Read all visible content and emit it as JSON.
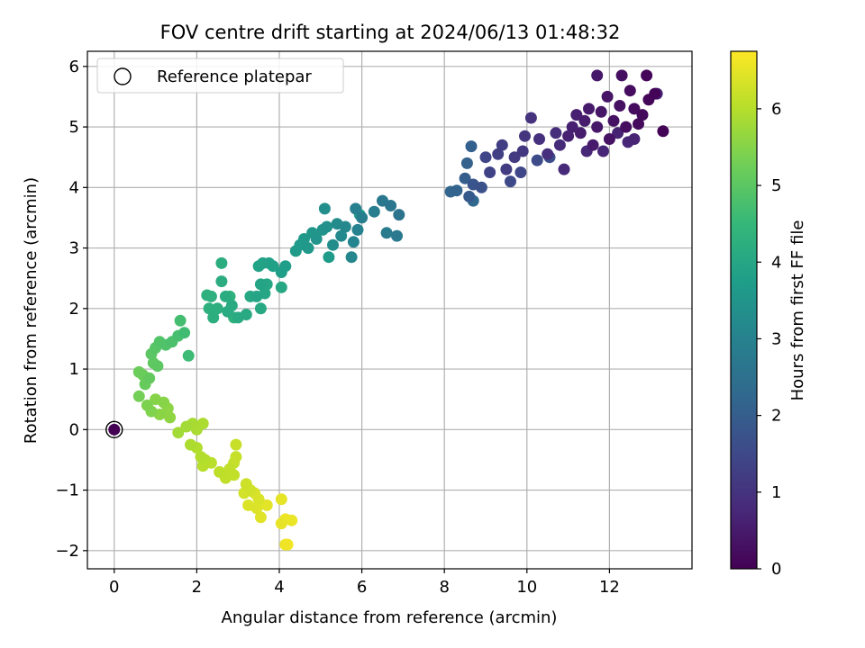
{
  "figure": {
    "title": "FOV centre drift starting at 2024/06/13 01:48:32"
  },
  "colors": {
    "viridis": [
      "#440154",
      "#482878",
      "#3e4989",
      "#31688e",
      "#26828e",
      "#1f9e89",
      "#35b779",
      "#6ece58",
      "#b5de2b",
      "#fde725"
    ],
    "grid": "#b0b0b0",
    "axes": "#000000"
  },
  "chart_data": {
    "type": "scatter",
    "title": "FOV centre drift starting at 2024/06/13 01:48:32",
    "xlabel": "Angular distance from reference (arcmin)",
    "ylabel": "Rotation from reference (arcmin)",
    "xlim": [
      -0.65,
      14
    ],
    "ylim": [
      -2.3,
      6.25
    ],
    "xticks": [
      0,
      2,
      4,
      6,
      8,
      10,
      12
    ],
    "yticks": [
      -2,
      -1,
      0,
      1,
      2,
      3,
      4,
      5,
      6
    ],
    "grid": true,
    "colorbar": {
      "label": "Hours from first FF file",
      "range": [
        0,
        6.75
      ],
      "ticks": [
        0,
        1,
        2,
        3,
        4,
        5,
        6
      ],
      "colormap": "viridis"
    },
    "legend": {
      "position": "top-left",
      "entries": [
        {
          "label": "Reference platepar",
          "marker": "open-circle"
        }
      ]
    },
    "reference_point": {
      "x": 0,
      "y": 0,
      "t": 0
    },
    "series": [
      {
        "points": [
          {
            "x": 13.3,
            "y": 4.93,
            "t": 0.05
          },
          {
            "x": 13.1,
            "y": 5.55,
            "t": 0.08
          },
          {
            "x": 12.9,
            "y": 5.85,
            "t": 0.1
          },
          {
            "x": 12.95,
            "y": 5.45,
            "t": 0.12
          },
          {
            "x": 12.8,
            "y": 5.2,
            "t": 0.15
          },
          {
            "x": 12.7,
            "y": 5.05,
            "t": 0.18
          },
          {
            "x": 12.6,
            "y": 5.3,
            "t": 0.2
          },
          {
            "x": 12.5,
            "y": 5.6,
            "t": 0.22
          },
          {
            "x": 12.4,
            "y": 5.0,
            "t": 0.25
          },
          {
            "x": 12.3,
            "y": 5.85,
            "t": 0.28
          },
          {
            "x": 12.25,
            "y": 5.35,
            "t": 0.3
          },
          {
            "x": 12.1,
            "y": 5.1,
            "t": 0.32
          },
          {
            "x": 12.0,
            "y": 4.8,
            "t": 0.35
          },
          {
            "x": 11.95,
            "y": 5.5,
            "t": 0.38
          },
          {
            "x": 11.8,
            "y": 5.25,
            "t": 0.4
          },
          {
            "x": 11.7,
            "y": 5.0,
            "t": 0.42
          },
          {
            "x": 11.7,
            "y": 5.85,
            "t": 0.45
          },
          {
            "x": 11.6,
            "y": 4.7,
            "t": 0.48
          },
          {
            "x": 11.5,
            "y": 5.3,
            "t": 0.5
          },
          {
            "x": 11.4,
            "y": 5.1,
            "t": 0.52
          },
          {
            "x": 11.3,
            "y": 4.9,
            "t": 0.55
          },
          {
            "x": 11.2,
            "y": 5.2,
            "t": 0.58
          },
          {
            "x": 11.1,
            "y": 5.0,
            "t": 0.6
          },
          {
            "x": 11.0,
            "y": 4.85,
            "t": 0.62
          },
          {
            "x": 12.2,
            "y": 4.9,
            "t": 0.65
          },
          {
            "x": 12.6,
            "y": 4.8,
            "t": 0.67
          },
          {
            "x": 13.15,
            "y": 5.55,
            "t": 0.7
          },
          {
            "x": 11.85,
            "y": 4.6,
            "t": 0.72
          },
          {
            "x": 12.45,
            "y": 4.75,
            "t": 0.74
          },
          {
            "x": 11.45,
            "y": 4.6,
            "t": 0.76
          },
          {
            "x": 10.9,
            "y": 4.3,
            "t": 0.8
          },
          {
            "x": 10.8,
            "y": 4.7,
            "t": 0.84
          },
          {
            "x": 10.7,
            "y": 4.9,
            "t": 0.88
          },
          {
            "x": 10.5,
            "y": 4.55,
            "t": 0.92
          },
          {
            "x": 10.3,
            "y": 4.8,
            "t": 0.96
          },
          {
            "x": 10.1,
            "y": 5.15,
            "t": 1.0
          },
          {
            "x": 9.95,
            "y": 4.85,
            "t": 1.05
          },
          {
            "x": 9.9,
            "y": 4.6,
            "t": 1.1
          },
          {
            "x": 9.7,
            "y": 4.5,
            "t": 1.15
          },
          {
            "x": 9.5,
            "y": 4.3,
            "t": 1.2
          },
          {
            "x": 9.4,
            "y": 4.7,
            "t": 1.25
          },
          {
            "x": 9.3,
            "y": 4.55,
            "t": 1.3
          },
          {
            "x": 9.1,
            "y": 4.25,
            "t": 1.35
          },
          {
            "x": 9.0,
            "y": 4.5,
            "t": 1.4
          },
          {
            "x": 9.85,
            "y": 4.25,
            "t": 1.45
          },
          {
            "x": 9.6,
            "y": 4.1,
            "t": 1.5
          },
          {
            "x": 10.25,
            "y": 4.45,
            "t": 1.55
          },
          {
            "x": 10.55,
            "y": 4.5,
            "t": 1.6
          },
          {
            "x": 8.9,
            "y": 4.0,
            "t": 1.7
          },
          {
            "x": 8.7,
            "y": 4.05,
            "t": 1.8
          },
          {
            "x": 8.6,
            "y": 3.85,
            "t": 1.9
          },
          {
            "x": 8.5,
            "y": 4.15,
            "t": 2.0
          },
          {
            "x": 8.65,
            "y": 4.68,
            "t": 2.05
          },
          {
            "x": 8.55,
            "y": 4.4,
            "t": 2.1
          },
          {
            "x": 8.3,
            "y": 3.95,
            "t": 2.15
          },
          {
            "x": 8.15,
            "y": 3.93,
            "t": 2.2
          },
          {
            "x": 8.7,
            "y": 3.78,
            "t": 2.25
          },
          {
            "x": 6.9,
            "y": 3.55,
            "t": 2.6
          },
          {
            "x": 6.7,
            "y": 3.7,
            "t": 2.65
          },
          {
            "x": 6.5,
            "y": 3.78,
            "t": 2.7
          },
          {
            "x": 6.85,
            "y": 3.2,
            "t": 2.75
          },
          {
            "x": 6.6,
            "y": 3.25,
            "t": 2.8
          },
          {
            "x": 6.3,
            "y": 3.6,
            "t": 2.85
          },
          {
            "x": 6.0,
            "y": 3.5,
            "t": 2.9
          },
          {
            "x": 5.85,
            "y": 3.65,
            "t": 2.95
          },
          {
            "x": 5.9,
            "y": 3.3,
            "t": 3.0
          },
          {
            "x": 5.8,
            "y": 3.1,
            "t": 3.05
          },
          {
            "x": 5.75,
            "y": 2.85,
            "t": 3.1
          },
          {
            "x": 5.6,
            "y": 3.35,
            "t": 3.15
          },
          {
            "x": 5.5,
            "y": 3.2,
            "t": 3.2
          },
          {
            "x": 5.4,
            "y": 3.4,
            "t": 3.25
          },
          {
            "x": 5.3,
            "y": 3.05,
            "t": 3.3
          },
          {
            "x": 5.1,
            "y": 3.65,
            "t": 3.35
          },
          {
            "x": 5.15,
            "y": 3.35,
            "t": 3.4
          },
          {
            "x": 5.05,
            "y": 3.3,
            "t": 3.45
          },
          {
            "x": 4.9,
            "y": 3.15,
            "t": 3.5
          },
          {
            "x": 4.8,
            "y": 3.25,
            "t": 3.55
          },
          {
            "x": 4.7,
            "y": 3.0,
            "t": 3.6
          },
          {
            "x": 4.6,
            "y": 3.15,
            "t": 3.62
          },
          {
            "x": 4.5,
            "y": 3.05,
            "t": 3.65
          },
          {
            "x": 4.4,
            "y": 2.95,
            "t": 3.68
          },
          {
            "x": 5.2,
            "y": 2.85,
            "t": 3.7
          },
          {
            "x": 5.95,
            "y": 3.55,
            "t": 3.72
          },
          {
            "x": 4.15,
            "y": 2.7,
            "t": 3.75
          },
          {
            "x": 4.05,
            "y": 2.6,
            "t": 3.78
          },
          {
            "x": 3.85,
            "y": 2.7,
            "t": 3.82
          },
          {
            "x": 3.75,
            "y": 2.75,
            "t": 3.85
          },
          {
            "x": 3.6,
            "y": 2.75,
            "t": 3.88
          },
          {
            "x": 3.5,
            "y": 2.7,
            "t": 3.9
          },
          {
            "x": 3.55,
            "y": 2.4,
            "t": 3.93
          },
          {
            "x": 3.45,
            "y": 2.2,
            "t": 3.95
          },
          {
            "x": 3.65,
            "y": 2.25,
            "t": 3.98
          },
          {
            "x": 3.7,
            "y": 2.4,
            "t": 4.0
          },
          {
            "x": 4.05,
            "y": 2.35,
            "t": 4.02
          },
          {
            "x": 3.55,
            "y": 2.0,
            "t": 4.04
          },
          {
            "x": 3.3,
            "y": 2.2,
            "t": 4.06
          },
          {
            "x": 3.2,
            "y": 1.9,
            "t": 4.08
          },
          {
            "x": 3.0,
            "y": 1.85,
            "t": 4.1
          },
          {
            "x": 2.85,
            "y": 2.05,
            "t": 4.12
          },
          {
            "x": 2.75,
            "y": 1.95,
            "t": 4.14
          },
          {
            "x": 2.7,
            "y": 2.2,
            "t": 4.16
          },
          {
            "x": 2.6,
            "y": 2.45,
            "t": 4.18
          },
          {
            "x": 2.6,
            "y": 2.75,
            "t": 4.2
          },
          {
            "x": 2.5,
            "y": 2.0,
            "t": 4.22
          },
          {
            "x": 2.4,
            "y": 1.85,
            "t": 4.24
          },
          {
            "x": 2.3,
            "y": 2.0,
            "t": 4.26
          },
          {
            "x": 2.35,
            "y": 2.2,
            "t": 4.28
          },
          {
            "x": 2.25,
            "y": 2.22,
            "t": 4.3
          },
          {
            "x": 2.9,
            "y": 1.85,
            "t": 4.32
          },
          {
            "x": 2.8,
            "y": 2.2,
            "t": 4.34
          },
          {
            "x": 1.8,
            "y": 1.22,
            "t": 4.6
          },
          {
            "x": 1.7,
            "y": 1.6,
            "t": 4.65
          },
          {
            "x": 1.6,
            "y": 1.8,
            "t": 4.7
          },
          {
            "x": 1.55,
            "y": 1.55,
            "t": 4.75
          },
          {
            "x": 1.4,
            "y": 1.45,
            "t": 4.8
          },
          {
            "x": 1.25,
            "y": 1.4,
            "t": 4.85
          },
          {
            "x": 1.1,
            "y": 1.45,
            "t": 4.9
          },
          {
            "x": 1.0,
            "y": 1.35,
            "t": 4.95
          },
          {
            "x": 0.9,
            "y": 1.25,
            "t": 5.0
          },
          {
            "x": 1.05,
            "y": 1.05,
            "t": 5.03
          },
          {
            "x": 0.95,
            "y": 1.1,
            "t": 5.06
          },
          {
            "x": 0.85,
            "y": 0.85,
            "t": 5.1
          },
          {
            "x": 0.75,
            "y": 0.75,
            "t": 5.15
          },
          {
            "x": 0.6,
            "y": 0.95,
            "t": 5.2
          },
          {
            "x": 0.7,
            "y": 0.9,
            "t": 5.22
          },
          {
            "x": 0.6,
            "y": 0.55,
            "t": 5.3
          },
          {
            "x": 0.8,
            "y": 0.4,
            "t": 5.4
          },
          {
            "x": 0.9,
            "y": 0.3,
            "t": 5.45
          },
          {
            "x": 1.0,
            "y": 0.5,
            "t": 5.5
          },
          {
            "x": 1.2,
            "y": 0.45,
            "t": 5.52
          },
          {
            "x": 1.1,
            "y": 0.25,
            "t": 5.55
          },
          {
            "x": 1.3,
            "y": 0.35,
            "t": 5.58
          },
          {
            "x": 1.35,
            "y": 0.2,
            "t": 5.6
          },
          {
            "x": 1.55,
            "y": -0.05,
            "t": 5.8
          },
          {
            "x": 1.75,
            "y": 0.05,
            "t": 5.82
          },
          {
            "x": 1.9,
            "y": 0.1,
            "t": 5.85
          },
          {
            "x": 2.0,
            "y": 0.0,
            "t": 5.88
          },
          {
            "x": 2.15,
            "y": 0.1,
            "t": 5.9
          },
          {
            "x": 1.85,
            "y": -0.25,
            "t": 5.92
          },
          {
            "x": 2.0,
            "y": -0.3,
            "t": 5.95
          },
          {
            "x": 2.1,
            "y": -0.45,
            "t": 5.97
          },
          {
            "x": 2.2,
            "y": -0.5,
            "t": 6.0
          },
          {
            "x": 2.15,
            "y": -0.6,
            "t": 6.02
          },
          {
            "x": 2.35,
            "y": -0.55,
            "t": 6.05
          },
          {
            "x": 2.55,
            "y": -0.7,
            "t": 6.08
          },
          {
            "x": 2.7,
            "y": -0.8,
            "t": 6.1
          },
          {
            "x": 2.8,
            "y": -0.65,
            "t": 6.12
          },
          {
            "x": 2.9,
            "y": -0.75,
            "t": 6.14
          },
          {
            "x": 2.9,
            "y": -0.55,
            "t": 6.16
          },
          {
            "x": 2.95,
            "y": -0.45,
            "t": 6.18
          },
          {
            "x": 2.95,
            "y": -0.25,
            "t": 6.2
          },
          {
            "x": 3.2,
            "y": -0.9,
            "t": 6.25
          },
          {
            "x": 3.3,
            "y": -1.0,
            "t": 6.28
          },
          {
            "x": 3.15,
            "y": -1.05,
            "t": 6.3
          },
          {
            "x": 3.4,
            "y": -1.05,
            "t": 6.35
          },
          {
            "x": 3.5,
            "y": -1.15,
            "t": 6.38
          },
          {
            "x": 3.25,
            "y": -1.25,
            "t": 6.4
          },
          {
            "x": 3.45,
            "y": -1.3,
            "t": 6.42
          },
          {
            "x": 3.55,
            "y": -1.45,
            "t": 6.45
          },
          {
            "x": 3.7,
            "y": -1.25,
            "t": 6.47
          },
          {
            "x": 4.05,
            "y": -1.15,
            "t": 6.5
          },
          {
            "x": 4.05,
            "y": -1.55,
            "t": 6.52
          },
          {
            "x": 4.3,
            "y": -1.5,
            "t": 6.55
          },
          {
            "x": 4.15,
            "y": -1.48,
            "t": 6.58
          },
          {
            "x": 4.15,
            "y": -1.9,
            "t": 6.6
          },
          {
            "x": 4.2,
            "y": -1.9,
            "t": 6.65
          }
        ]
      }
    ]
  }
}
